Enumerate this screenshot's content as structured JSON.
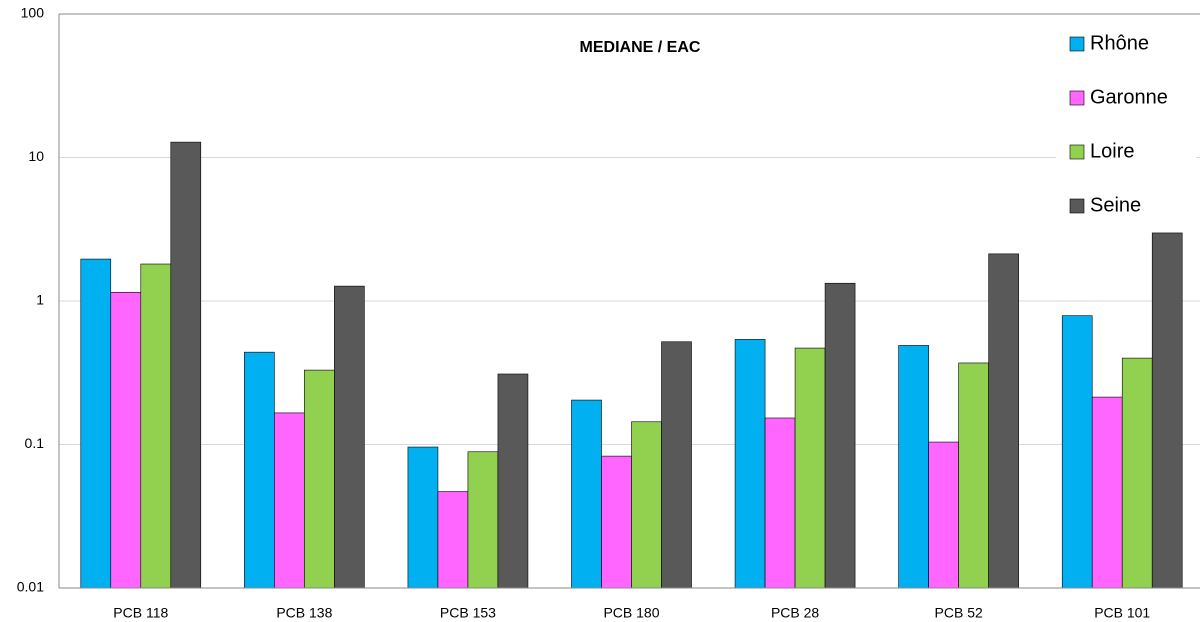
{
  "chart_data": {
    "type": "bar",
    "title": "MEDIANE / EAC",
    "categories": [
      "PCB 118",
      "PCB 138",
      "PCB 153",
      "PCB 180",
      "PCB 28",
      "PCB 52",
      "PCB 101"
    ],
    "series": [
      {
        "name": "Rhône",
        "color": "#00b0f0",
        "values": [
          1.96,
          0.44,
          0.096,
          0.204,
          0.54,
          0.49,
          0.79
        ]
      },
      {
        "name": "Garonne",
        "color": "#ff66ff",
        "values": [
          1.15,
          0.166,
          0.047,
          0.083,
          0.153,
          0.104,
          0.214
        ]
      },
      {
        "name": "Loire",
        "color": "#92d050",
        "values": [
          1.81,
          0.33,
          0.089,
          0.144,
          0.47,
          0.37,
          0.4
        ]
      },
      {
        "name": "Seine",
        "color": "#595959",
        "values": [
          12.8,
          1.27,
          0.31,
          0.52,
          1.33,
          2.13,
          2.98
        ]
      }
    ],
    "ylim": [
      0.01,
      100
    ],
    "yticks": [
      0.01,
      0.1,
      1,
      10,
      100
    ],
    "log_scale": true,
    "grid": true,
    "legend_position": "top-right"
  }
}
